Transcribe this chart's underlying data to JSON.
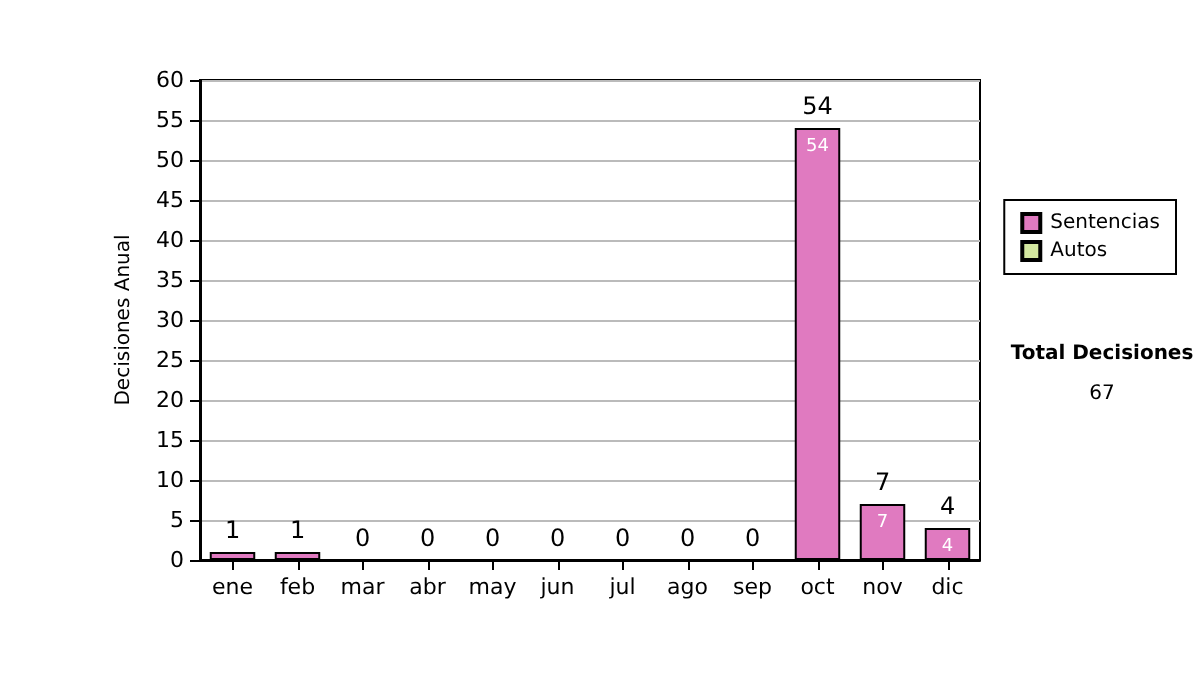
{
  "chart_data": {
    "type": "bar",
    "ylabel": "Decisiones Anual",
    "categories": [
      "ene",
      "feb",
      "mar",
      "abr",
      "may",
      "jun",
      "jul",
      "ago",
      "sep",
      "oct",
      "nov",
      "dic"
    ],
    "series": [
      {
        "name": "Sentencias",
        "color": "#e07ac0",
        "values": [
          1,
          1,
          0,
          0,
          0,
          0,
          0,
          0,
          0,
          54,
          7,
          4
        ],
        "value_labels": [
          null,
          null,
          null,
          null,
          null,
          null,
          null,
          null,
          null,
          "54",
          "7",
          "4"
        ]
      },
      {
        "name": "Autos",
        "color": "#d4e8a0",
        "values": [
          0,
          0,
          0,
          0,
          0,
          0,
          0,
          0,
          0,
          0,
          0,
          0
        ]
      }
    ],
    "stacked": true,
    "totals": [
      "1",
      "1",
      "0",
      "0",
      "0",
      "0",
      "0",
      "0",
      "0",
      "54",
      "7",
      "4"
    ],
    "ylim": [
      0,
      60
    ],
    "yticks": [
      0,
      5,
      10,
      15,
      20,
      25,
      30,
      35,
      40,
      45,
      50,
      55,
      60
    ],
    "grid": "y",
    "legend": "right",
    "annotations": [
      "Total Decisiones",
      "67"
    ]
  }
}
